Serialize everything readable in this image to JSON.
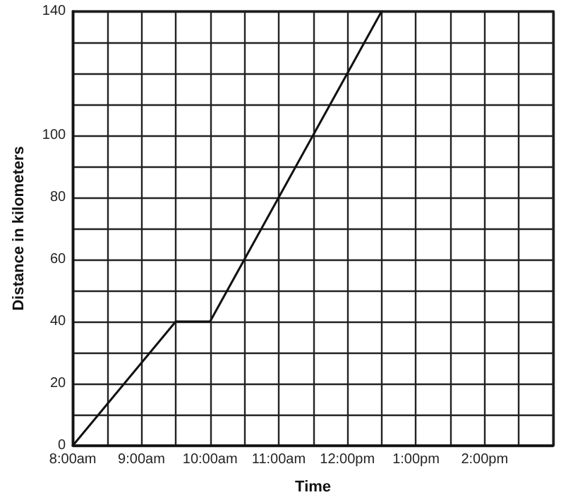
{
  "chart_data": {
    "type": "line",
    "xlabel": "Time",
    "ylabel": "Distance in kilometers",
    "x": [
      8,
      9.5,
      10,
      12.5
    ],
    "series": [
      {
        "color": "#111111",
        "values": [
          0,
          40,
          40,
          140
        ]
      }
    ],
    "xlim": [
      8,
      15
    ],
    "xticks": [
      {
        "value": 8,
        "label": "8:00am"
      },
      {
        "value": 8.5,
        "label": null
      },
      {
        "value": 9,
        "label": "9:00am"
      },
      {
        "value": 9.5,
        "label": null
      },
      {
        "value": 10,
        "label": "10:00am"
      },
      {
        "value": 10.5,
        "label": null
      },
      {
        "value": 11,
        "label": "11:00am"
      },
      {
        "value": 11.5,
        "label": null
      },
      {
        "value": 12,
        "label": "12:00pm"
      },
      {
        "value": 12.5,
        "label": null
      },
      {
        "value": 13,
        "label": "1:00pm"
      },
      {
        "value": 13.5,
        "label": null
      },
      {
        "value": 14,
        "label": "2:00pm"
      },
      {
        "value": 14.5,
        "label": null
      },
      {
        "value": 15,
        "label": null
      }
    ],
    "ylim": [
      0,
      140
    ],
    "yticks": [
      0,
      {
        "value": 10,
        "label": null
      },
      20,
      {
        "value": 30,
        "label": null
      },
      40,
      {
        "value": 50,
        "label": null
      },
      60,
      {
        "value": 70,
        "label": null
      },
      80,
      {
        "value": 90,
        "label": null
      },
      100,
      {
        "value": 110,
        "label": null
      },
      {
        "value": 120,
        "label": null
      },
      {
        "value": 130,
        "label": null
      },
      140
    ],
    "grid": true,
    "marker": "none",
    "line_style": "solid"
  }
}
